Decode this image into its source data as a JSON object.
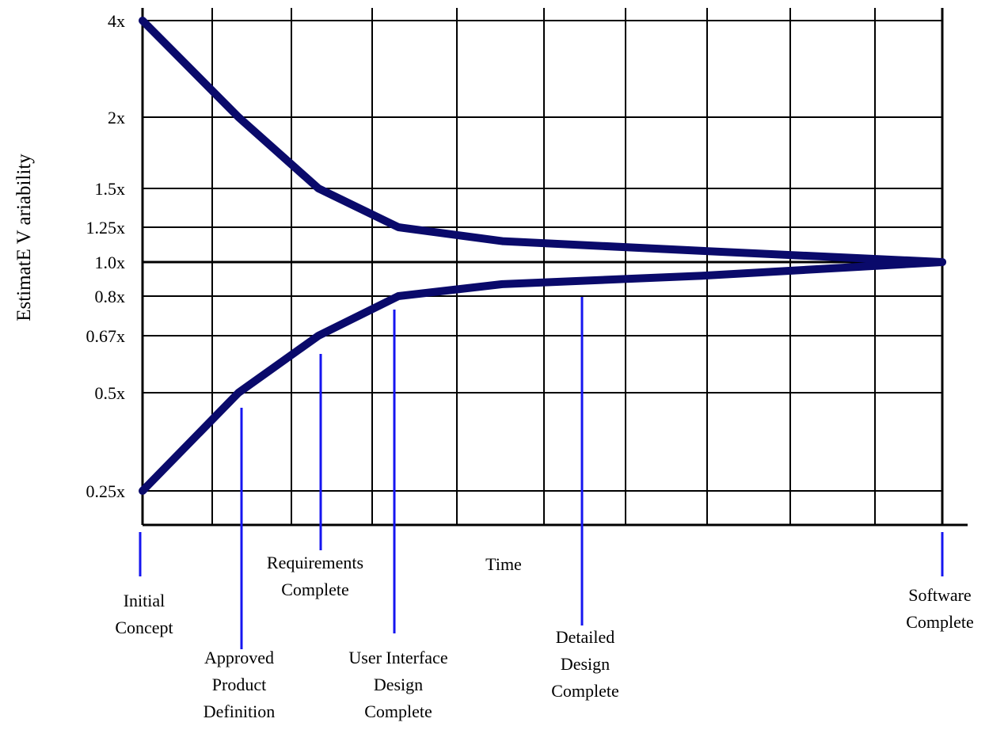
{
  "chart_data": {
    "type": "line",
    "title": "",
    "ylabel": "EstimatE V ariability",
    "xlabel": "Time",
    "y_ticks": [
      "4x",
      "2x",
      "1.5x",
      "1.25x",
      "1.0x",
      "0.8x",
      "0.67x",
      "0.5x",
      "0.25x"
    ],
    "milestones": [
      {
        "label": "Initial\nConcept"
      },
      {
        "label": "Approved\nProduct\nDefinition"
      },
      {
        "label": "Requirements\nComplete"
      },
      {
        "label": "User Interface\nDesign\nComplete"
      },
      {
        "label": "Detailed\nDesign\nComplete"
      },
      {
        "label": "Software\nComplete"
      }
    ],
    "series": [
      {
        "role": "upper",
        "color": "#0a0a6b",
        "points": [
          {
            "x": 0.0,
            "y": 4.0
          },
          {
            "x": 0.12,
            "y": 2.0
          },
          {
            "x": 0.22,
            "y": 1.5
          },
          {
            "x": 0.32,
            "y": 1.25
          },
          {
            "x": 0.45,
            "y": 1.15
          },
          {
            "x": 0.7,
            "y": 1.08
          },
          {
            "x": 1.0,
            "y": 1.0
          }
        ]
      },
      {
        "role": "lower",
        "color": "#0a0a6b",
        "points": [
          {
            "x": 0.0,
            "y": 0.25
          },
          {
            "x": 0.12,
            "y": 0.5
          },
          {
            "x": 0.22,
            "y": 0.67
          },
          {
            "x": 0.32,
            "y": 0.8
          },
          {
            "x": 0.45,
            "y": 0.87
          },
          {
            "x": 0.7,
            "y": 0.92
          },
          {
            "x": 1.0,
            "y": 1.0
          }
        ]
      }
    ],
    "marker_color": "#1515f0",
    "grid": true
  }
}
